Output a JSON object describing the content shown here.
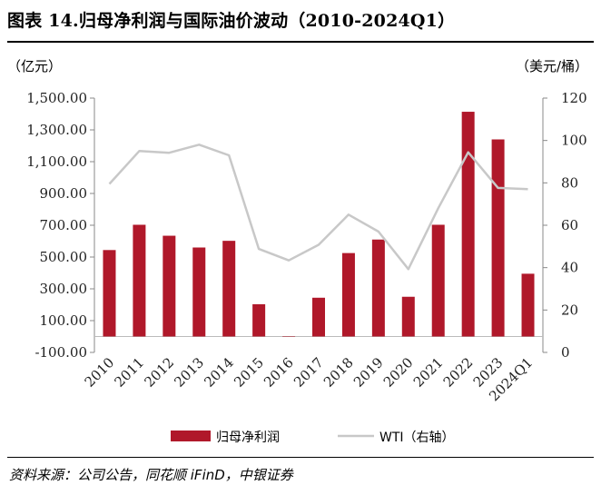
{
  "title": "图表 14.归母净利润与国际油价波动（2010-2024Q1）",
  "source": "资料来源：公司公告，同花顺 iFinD，中银证券",
  "chart_data": {
    "type": "bar",
    "categories": [
      "2010",
      "2011",
      "2012",
      "2013",
      "2014",
      "2015",
      "2016",
      "2017",
      "2018",
      "2019",
      "2020",
      "2021",
      "2022",
      "2023",
      "2024Q1"
    ],
    "series": [
      {
        "name": "归母净利润",
        "type": "bar",
        "axis": "left",
        "color": "#B0182A",
        "values": [
          544,
          703,
          634,
          560,
          602,
          203,
          0,
          244,
          525,
          610,
          250,
          703,
          1414,
          1240,
          395
        ]
      },
      {
        "name": "WTI（右轴）",
        "type": "line",
        "axis": "right",
        "color": "#C8C8C8",
        "values": [
          79.5,
          95,
          94.2,
          98,
          93,
          48.8,
          43.4,
          50.8,
          65,
          57,
          39.3,
          68,
          94.4,
          77.6,
          77
        ]
      }
    ],
    "ylabel_left": "（亿元）",
    "ylabel_right": "（美元/桶）",
    "ylim_left": [
      -100,
      1500
    ],
    "ylim_right": [
      0,
      120
    ],
    "yticks_left": [
      "1,500.00",
      "1,300.00",
      "1,100.00",
      "900.00",
      "700.00",
      "500.00",
      "300.00",
      "100.00",
      "-100.00"
    ],
    "yticks_left_values": [
      1500,
      1300,
      1100,
      900,
      700,
      500,
      300,
      100,
      -100
    ],
    "yticks_right": [
      "120",
      "100",
      "80",
      "60",
      "40",
      "20",
      "0"
    ],
    "yticks_right_values": [
      120,
      100,
      80,
      60,
      40,
      20,
      0
    ],
    "grid": false,
    "legend_position": "bottom"
  }
}
